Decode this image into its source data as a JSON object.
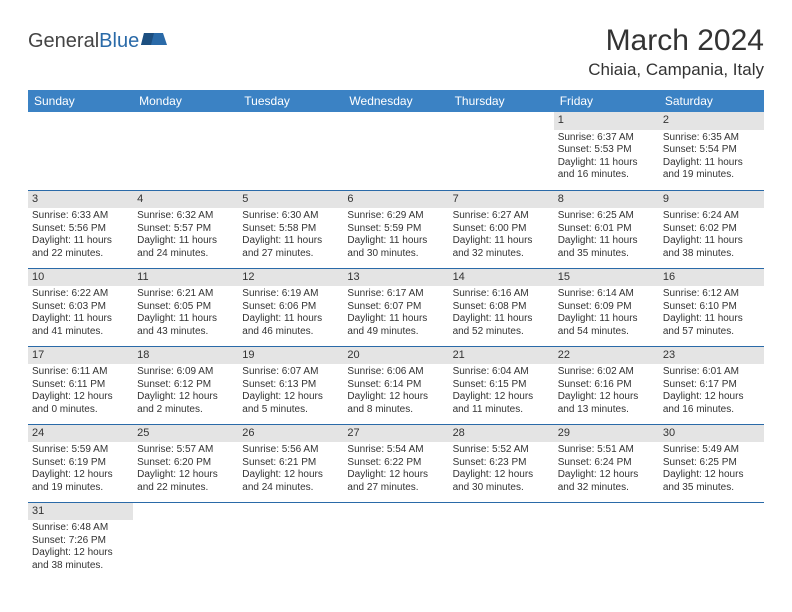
{
  "logo": {
    "part1": "General",
    "part2": "Blue"
  },
  "title": "March 2024",
  "location": "Chiaia, Campania, Italy",
  "colors": {
    "header_bg": "#3b82c4",
    "header_fg": "#ffffff",
    "daynum_bg": "#e4e4e4",
    "rule": "#2a6aa8",
    "text": "#333333"
  },
  "weekdays": [
    "Sunday",
    "Monday",
    "Tuesday",
    "Wednesday",
    "Thursday",
    "Friday",
    "Saturday"
  ],
  "weeks": [
    [
      null,
      null,
      null,
      null,
      null,
      {
        "n": "1",
        "sunrise": "Sunrise: 6:37 AM",
        "sunset": "Sunset: 5:53 PM",
        "daylight": "Daylight: 11 hours and 16 minutes."
      },
      {
        "n": "2",
        "sunrise": "Sunrise: 6:35 AM",
        "sunset": "Sunset: 5:54 PM",
        "daylight": "Daylight: 11 hours and 19 minutes."
      }
    ],
    [
      {
        "n": "3",
        "sunrise": "Sunrise: 6:33 AM",
        "sunset": "Sunset: 5:56 PM",
        "daylight": "Daylight: 11 hours and 22 minutes."
      },
      {
        "n": "4",
        "sunrise": "Sunrise: 6:32 AM",
        "sunset": "Sunset: 5:57 PM",
        "daylight": "Daylight: 11 hours and 24 minutes."
      },
      {
        "n": "5",
        "sunrise": "Sunrise: 6:30 AM",
        "sunset": "Sunset: 5:58 PM",
        "daylight": "Daylight: 11 hours and 27 minutes."
      },
      {
        "n": "6",
        "sunrise": "Sunrise: 6:29 AM",
        "sunset": "Sunset: 5:59 PM",
        "daylight": "Daylight: 11 hours and 30 minutes."
      },
      {
        "n": "7",
        "sunrise": "Sunrise: 6:27 AM",
        "sunset": "Sunset: 6:00 PM",
        "daylight": "Daylight: 11 hours and 32 minutes."
      },
      {
        "n": "8",
        "sunrise": "Sunrise: 6:25 AM",
        "sunset": "Sunset: 6:01 PM",
        "daylight": "Daylight: 11 hours and 35 minutes."
      },
      {
        "n": "9",
        "sunrise": "Sunrise: 6:24 AM",
        "sunset": "Sunset: 6:02 PM",
        "daylight": "Daylight: 11 hours and 38 minutes."
      }
    ],
    [
      {
        "n": "10",
        "sunrise": "Sunrise: 6:22 AM",
        "sunset": "Sunset: 6:03 PM",
        "daylight": "Daylight: 11 hours and 41 minutes."
      },
      {
        "n": "11",
        "sunrise": "Sunrise: 6:21 AM",
        "sunset": "Sunset: 6:05 PM",
        "daylight": "Daylight: 11 hours and 43 minutes."
      },
      {
        "n": "12",
        "sunrise": "Sunrise: 6:19 AM",
        "sunset": "Sunset: 6:06 PM",
        "daylight": "Daylight: 11 hours and 46 minutes."
      },
      {
        "n": "13",
        "sunrise": "Sunrise: 6:17 AM",
        "sunset": "Sunset: 6:07 PM",
        "daylight": "Daylight: 11 hours and 49 minutes."
      },
      {
        "n": "14",
        "sunrise": "Sunrise: 6:16 AM",
        "sunset": "Sunset: 6:08 PM",
        "daylight": "Daylight: 11 hours and 52 minutes."
      },
      {
        "n": "15",
        "sunrise": "Sunrise: 6:14 AM",
        "sunset": "Sunset: 6:09 PM",
        "daylight": "Daylight: 11 hours and 54 minutes."
      },
      {
        "n": "16",
        "sunrise": "Sunrise: 6:12 AM",
        "sunset": "Sunset: 6:10 PM",
        "daylight": "Daylight: 11 hours and 57 minutes."
      }
    ],
    [
      {
        "n": "17",
        "sunrise": "Sunrise: 6:11 AM",
        "sunset": "Sunset: 6:11 PM",
        "daylight": "Daylight: 12 hours and 0 minutes."
      },
      {
        "n": "18",
        "sunrise": "Sunrise: 6:09 AM",
        "sunset": "Sunset: 6:12 PM",
        "daylight": "Daylight: 12 hours and 2 minutes."
      },
      {
        "n": "19",
        "sunrise": "Sunrise: 6:07 AM",
        "sunset": "Sunset: 6:13 PM",
        "daylight": "Daylight: 12 hours and 5 minutes."
      },
      {
        "n": "20",
        "sunrise": "Sunrise: 6:06 AM",
        "sunset": "Sunset: 6:14 PM",
        "daylight": "Daylight: 12 hours and 8 minutes."
      },
      {
        "n": "21",
        "sunrise": "Sunrise: 6:04 AM",
        "sunset": "Sunset: 6:15 PM",
        "daylight": "Daylight: 12 hours and 11 minutes."
      },
      {
        "n": "22",
        "sunrise": "Sunrise: 6:02 AM",
        "sunset": "Sunset: 6:16 PM",
        "daylight": "Daylight: 12 hours and 13 minutes."
      },
      {
        "n": "23",
        "sunrise": "Sunrise: 6:01 AM",
        "sunset": "Sunset: 6:17 PM",
        "daylight": "Daylight: 12 hours and 16 minutes."
      }
    ],
    [
      {
        "n": "24",
        "sunrise": "Sunrise: 5:59 AM",
        "sunset": "Sunset: 6:19 PM",
        "daylight": "Daylight: 12 hours and 19 minutes."
      },
      {
        "n": "25",
        "sunrise": "Sunrise: 5:57 AM",
        "sunset": "Sunset: 6:20 PM",
        "daylight": "Daylight: 12 hours and 22 minutes."
      },
      {
        "n": "26",
        "sunrise": "Sunrise: 5:56 AM",
        "sunset": "Sunset: 6:21 PM",
        "daylight": "Daylight: 12 hours and 24 minutes."
      },
      {
        "n": "27",
        "sunrise": "Sunrise: 5:54 AM",
        "sunset": "Sunset: 6:22 PM",
        "daylight": "Daylight: 12 hours and 27 minutes."
      },
      {
        "n": "28",
        "sunrise": "Sunrise: 5:52 AM",
        "sunset": "Sunset: 6:23 PM",
        "daylight": "Daylight: 12 hours and 30 minutes."
      },
      {
        "n": "29",
        "sunrise": "Sunrise: 5:51 AM",
        "sunset": "Sunset: 6:24 PM",
        "daylight": "Daylight: 12 hours and 32 minutes."
      },
      {
        "n": "30",
        "sunrise": "Sunrise: 5:49 AM",
        "sunset": "Sunset: 6:25 PM",
        "daylight": "Daylight: 12 hours and 35 minutes."
      }
    ],
    [
      {
        "n": "31",
        "sunrise": "Sunrise: 6:48 AM",
        "sunset": "Sunset: 7:26 PM",
        "daylight": "Daylight: 12 hours and 38 minutes."
      },
      null,
      null,
      null,
      null,
      null,
      null
    ]
  ]
}
